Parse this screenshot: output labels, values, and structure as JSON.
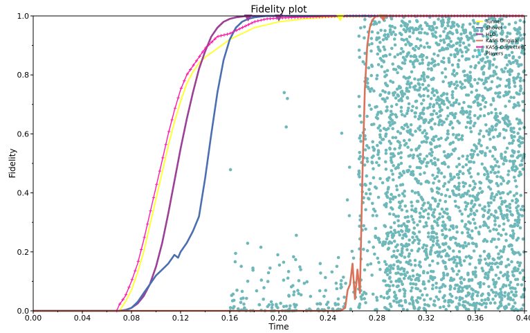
{
  "chart_data": {
    "type": "line",
    "title": "Fidelity plot",
    "xlabel": "Time",
    "ylabel": "Fidelity",
    "xlim": [
      0.0,
      0.4
    ],
    "ylim": [
      0.0,
      1.0
    ],
    "xticks": [
      "0.00",
      "0.04",
      "0.08",
      "0.12",
      "0.16",
      "0.20",
      "0.24",
      "0.28",
      "0.32",
      "0.36",
      "0.40"
    ],
    "yticks": [
      "0.0",
      "0.2",
      "0.4",
      "0.6",
      "0.8",
      "1.0"
    ],
    "grid": false,
    "legend_position": "top-right",
    "series": [
      {
        "name": "Tunnel",
        "color": "#ffff33",
        "x": [
          0.0,
          0.07,
          0.075,
          0.08,
          0.085,
          0.09,
          0.095,
          0.1,
          0.105,
          0.11,
          0.115,
          0.12,
          0.125,
          0.13,
          0.135,
          0.14,
          0.15,
          0.16,
          0.17,
          0.18,
          0.19,
          0.2,
          0.22,
          0.24,
          0.25,
          0.3,
          0.4
        ],
        "y": [
          0.0,
          0.0,
          0.03,
          0.07,
          0.13,
          0.2,
          0.29,
          0.38,
          0.47,
          0.56,
          0.64,
          0.71,
          0.77,
          0.81,
          0.84,
          0.86,
          0.89,
          0.92,
          0.94,
          0.96,
          0.97,
          0.98,
          0.99,
          0.995,
          0.997,
          1.0,
          1.0
        ],
        "marker_x": 0.25
      },
      {
        "name": "Shovel",
        "color": "#4a6fb0",
        "x": [
          0.0,
          0.07,
          0.075,
          0.08,
          0.085,
          0.09,
          0.095,
          0.1,
          0.105,
          0.11,
          0.115,
          0.118,
          0.12,
          0.125,
          0.13,
          0.135,
          0.14,
          0.145,
          0.15,
          0.155,
          0.16,
          0.165,
          0.17,
          0.175,
          0.18,
          0.185,
          0.19,
          0.2,
          0.4
        ],
        "y": [
          0.0,
          0.0,
          0.002,
          0.01,
          0.03,
          0.06,
          0.09,
          0.12,
          0.14,
          0.16,
          0.19,
          0.18,
          0.2,
          0.23,
          0.27,
          0.32,
          0.45,
          0.6,
          0.74,
          0.85,
          0.92,
          0.96,
          0.98,
          0.99,
          0.995,
          0.998,
          1.0,
          1.0,
          1.0
        ]
      },
      {
        "name": "HLO",
        "color": "#9b3f97",
        "x": [
          0.0,
          0.07,
          0.075,
          0.08,
          0.085,
          0.09,
          0.095,
          0.1,
          0.105,
          0.11,
          0.115,
          0.12,
          0.125,
          0.13,
          0.135,
          0.14,
          0.145,
          0.15,
          0.155,
          0.16,
          0.165,
          0.17,
          0.175,
          0.2,
          0.4
        ],
        "y": [
          0.0,
          0.0,
          0.003,
          0.01,
          0.025,
          0.05,
          0.09,
          0.15,
          0.23,
          0.33,
          0.44,
          0.55,
          0.65,
          0.74,
          0.82,
          0.88,
          0.93,
          0.96,
          0.98,
          0.99,
          0.995,
          0.998,
          1.0,
          1.0,
          1.0
        ],
        "marker_x": [
          0.175,
          0.2
        ]
      },
      {
        "name": "KASS Original",
        "color": "#d9725a",
        "x": [
          0.0,
          0.25,
          0.254,
          0.256,
          0.258,
          0.26,
          0.262,
          0.264,
          0.266,
          0.268,
          0.27,
          0.272,
          0.274,
          0.276,
          0.278,
          0.28,
          0.29,
          0.4
        ],
        "y": [
          0.0,
          0.0,
          0.01,
          0.07,
          0.09,
          0.16,
          0.04,
          0.14,
          0.06,
          0.45,
          0.75,
          0.9,
          0.96,
          0.985,
          0.995,
          1.0,
          1.0,
          1.0
        ],
        "marker_x": 0.285
      },
      {
        "name": "KASS-Corrected",
        "color": "#ff1aa8",
        "x": [
          0.0,
          0.068,
          0.07,
          0.075,
          0.08,
          0.085,
          0.09,
          0.095,
          0.1,
          0.105,
          0.11,
          0.115,
          0.12,
          0.125,
          0.13,
          0.135,
          0.14,
          0.145,
          0.15,
          0.155,
          0.16,
          0.165,
          0.17,
          0.175,
          0.18,
          0.19,
          0.2,
          0.22,
          0.24,
          0.26,
          0.3,
          0.4
        ],
        "y": [
          0.0,
          0.0,
          0.02,
          0.05,
          0.1,
          0.16,
          0.24,
          0.33,
          0.42,
          0.51,
          0.6,
          0.68,
          0.75,
          0.8,
          0.83,
          0.86,
          0.89,
          0.91,
          0.93,
          0.935,
          0.94,
          0.95,
          0.96,
          0.97,
          0.98,
          0.99,
          0.993,
          0.996,
          0.998,
          1.0,
          1.0,
          1.0
        ]
      }
    ],
    "scatter": {
      "name": "Players",
      "color": "#6fb8b9",
      "description_density": "sparse for Time 0.16-0.26 mostly near Fidelity 0-0.15 with occasional points up to 0.8; dense from Time 0.27 to 0.40 across Fidelity 0-1"
    }
  }
}
